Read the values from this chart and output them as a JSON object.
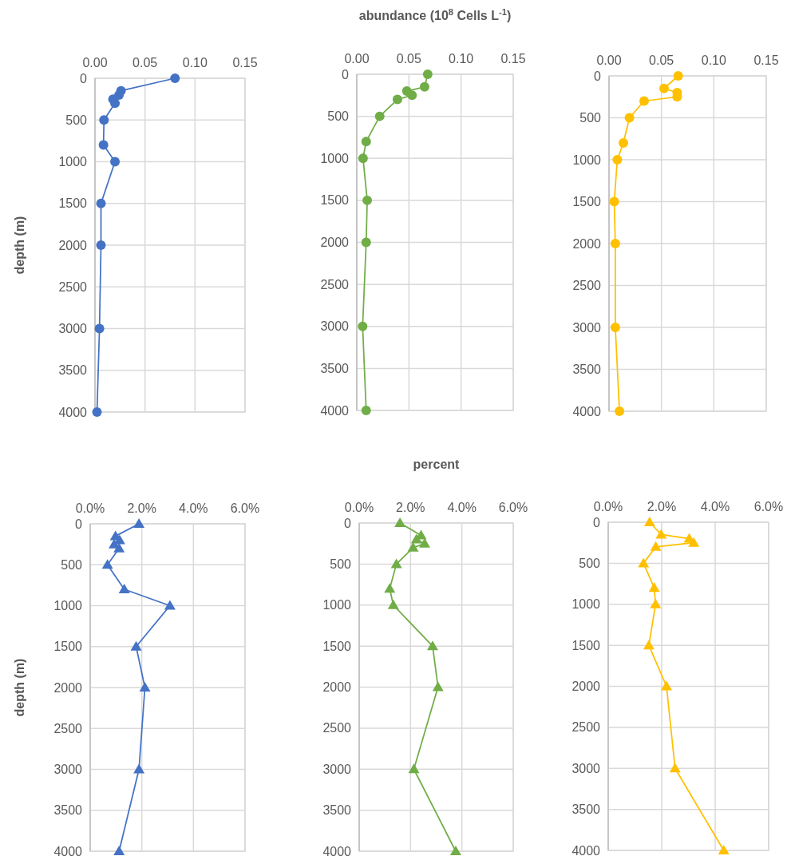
{
  "chart_data": [
    {
      "type": "line",
      "ylabel": "depth (m)",
      "marker": "circle",
      "grid": true,
      "xlim": [
        0,
        0.15
      ],
      "xticks": [
        {
          "value": 0,
          "label": "0.00"
        },
        {
          "value": 0.05,
          "label": "0.05"
        },
        {
          "value": 0.1,
          "label": "0.10"
        },
        {
          "value": 0.15,
          "label": "0.15"
        }
      ],
      "ylim": [
        4000,
        0
      ],
      "yticks": [
        0,
        500,
        1000,
        1500,
        2000,
        2500,
        3000,
        3500,
        4000
      ],
      "series": [
        {
          "color": "#4472c4",
          "x": [
            0.08,
            0.026,
            0.024,
            0.018,
            0.02,
            0.009,
            0.0085,
            0.02,
            0.006,
            0.006,
            0.0045,
            0.002
          ],
          "values": [
            0,
            150,
            200,
            250,
            300,
            500,
            800,
            1000,
            1500,
            2000,
            3000,
            4000
          ]
        }
      ]
    },
    {
      "type": "line",
      "xlabel": "abundance (10$^{8}$ Cells L$^{-1}$)",
      "marker": "circle",
      "grid": true,
      "xlim": [
        0,
        0.15
      ],
      "xticks": [
        {
          "value": 0,
          "label": "0.00"
        },
        {
          "value": 0.05,
          "label": "0.05"
        },
        {
          "value": 0.1,
          "label": "0.10"
        },
        {
          "value": 0.15,
          "label": "0.15"
        }
      ],
      "ylim": [
        4000,
        0
      ],
      "yticks": [
        0,
        500,
        1000,
        1500,
        2000,
        2500,
        3000,
        3500,
        4000
      ],
      "series": [
        {
          "color": "#70ad47",
          "x": [
            0.068,
            0.065,
            0.048,
            0.053,
            0.039,
            0.022,
            0.009,
            0.006,
            0.01,
            0.009,
            0.0056,
            0.009
          ],
          "values": [
            0,
            150,
            200,
            250,
            300,
            500,
            800,
            1000,
            1500,
            2000,
            3000,
            4000
          ]
        }
      ]
    },
    {
      "type": "line",
      "marker": "circle",
      "grid": true,
      "xlim": [
        0,
        0.15
      ],
      "xticks": [
        {
          "value": 0,
          "label": "0.00"
        },
        {
          "value": 0.05,
          "label": "0.05"
        },
        {
          "value": 0.1,
          "label": "0.10"
        },
        {
          "value": 0.15,
          "label": "0.15"
        }
      ],
      "ylim": [
        4000,
        0
      ],
      "yticks": [
        0,
        500,
        1000,
        1500,
        2000,
        2500,
        3000,
        3500,
        4000
      ],
      "series": [
        {
          "color": "#ffc000",
          "x": [
            0.066,
            0.0525,
            0.065,
            0.065,
            0.0335,
            0.0195,
            0.0137,
            0.0079,
            0.005,
            0.006,
            0.006,
            0.01
          ],
          "values": [
            0,
            150,
            200,
            250,
            300,
            500,
            800,
            1000,
            1500,
            2000,
            3000,
            4000
          ]
        }
      ]
    },
    {
      "type": "line",
      "ylabel": "depth (m)",
      "marker": "triangle",
      "grid": true,
      "xlim": [
        0,
        6
      ],
      "xticks": [
        {
          "value": 0,
          "label": "0.0%"
        },
        {
          "value": 2,
          "label": "2.0%"
        },
        {
          "value": 4,
          "label": "4.0%"
        },
        {
          "value": 6,
          "label": "6.0%"
        }
      ],
      "ylim": [
        4000,
        0
      ],
      "yticks": [
        0,
        500,
        1000,
        1500,
        2000,
        2500,
        3000,
        3500,
        4000
      ],
      "series": [
        {
          "color": "#4472c4",
          "x": [
            1.89,
            0.98,
            1.14,
            0.93,
            1.12,
            0.67,
            1.32,
            3.09,
            1.78,
            2.12,
            1.89,
            1.12
          ],
          "values": [
            0,
            150,
            200,
            250,
            300,
            500,
            800,
            1000,
            1500,
            2000,
            3000,
            4000
          ]
        }
      ]
    },
    {
      "type": "line",
      "xlabel": "percent",
      "marker": "triangle",
      "grid": true,
      "xlim": [
        0,
        6
      ],
      "xticks": [
        {
          "value": 0,
          "label": "0.0%"
        },
        {
          "value": 2,
          "label": "2.0%"
        },
        {
          "value": 4,
          "label": "4.0%"
        },
        {
          "value": 6,
          "label": "6.0%"
        }
      ],
      "ylim": [
        4000,
        0
      ],
      "yticks": [
        0,
        500,
        1000,
        1500,
        2000,
        2500,
        3000,
        3500,
        4000
      ],
      "series": [
        {
          "color": "#70ad47",
          "x": [
            1.59,
            2.41,
            2.23,
            2.55,
            2.1,
            1.45,
            1.19,
            1.33,
            2.86,
            3.07,
            2.13,
            3.76
          ],
          "values": [
            0,
            150,
            200,
            250,
            300,
            500,
            800,
            1000,
            1500,
            2000,
            3000,
            4000
          ]
        }
      ]
    },
    {
      "type": "line",
      "marker": "triangle",
      "grid": true,
      "xlim": [
        0,
        6
      ],
      "xticks": [
        {
          "value": 0,
          "label": "0.0%"
        },
        {
          "value": 2,
          "label": "2.0%"
        },
        {
          "value": 4,
          "label": "4.0%"
        },
        {
          "value": 6,
          "label": "6.0%"
        }
      ],
      "ylim": [
        4000,
        0
      ],
      "yticks": [
        0,
        500,
        1000,
        1500,
        2000,
        2500,
        3000,
        3500,
        4000
      ],
      "series": [
        {
          "color": "#ffc000",
          "x": [
            1.55,
            1.98,
            3.03,
            3.2,
            1.78,
            1.32,
            1.72,
            1.77,
            1.52,
            2.18,
            2.5,
            4.32
          ],
          "values": [
            0,
            150,
            200,
            250,
            300,
            500,
            800,
            1000,
            1500,
            2000,
            3000,
            4000
          ]
        }
      ]
    }
  ]
}
